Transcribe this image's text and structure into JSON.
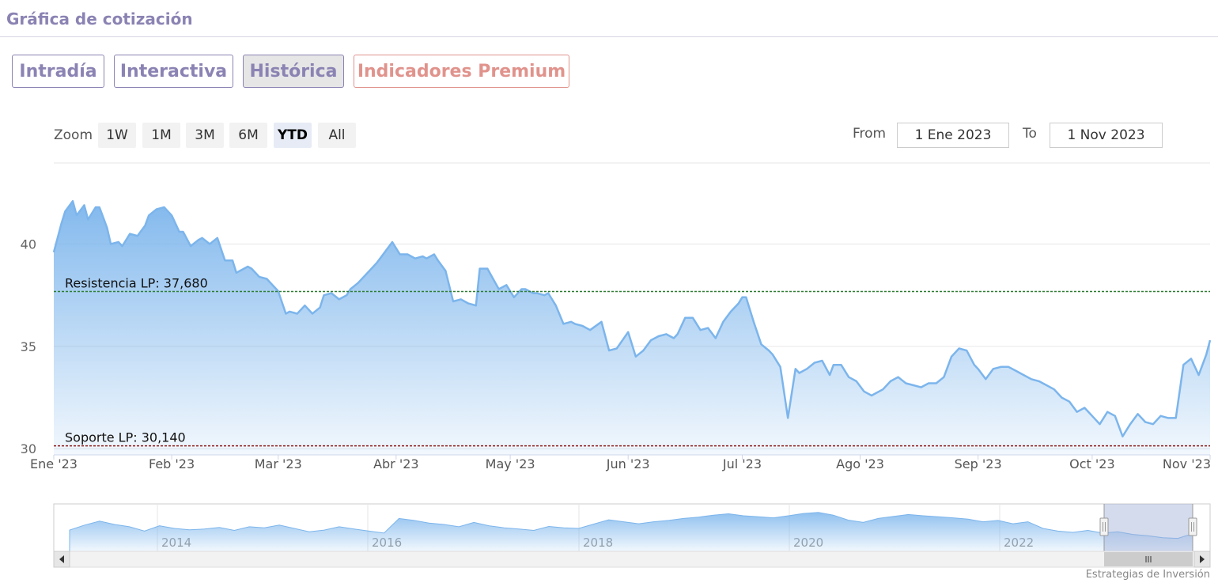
{
  "header": {
    "title": "Gráfica de cotización"
  },
  "tabs": [
    {
      "label": "Intradía",
      "active": false
    },
    {
      "label": "Interactiva",
      "active": false
    },
    {
      "label": "Histórica",
      "active": true
    },
    {
      "label": "Indicadores Premium",
      "active": false
    }
  ],
  "zoom": {
    "label": "Zoom",
    "buttons": [
      "1W",
      "1M",
      "3M",
      "6M",
      "YTD",
      "All"
    ],
    "selected": "YTD"
  },
  "range": {
    "from_label": "From",
    "from_value": "1 Ene 2023",
    "to_label": "To",
    "to_value": "1 Nov 2023"
  },
  "credit": "Estrategias de Inversión",
  "colors": {
    "line": "#7cb5ec",
    "resistance": "#2e7d32",
    "support": "#8b1a1a",
    "accent": "#8b83b3",
    "premium": "#e0938c"
  },
  "chart_data": {
    "type": "area",
    "ylim": [
      29.7,
      43.5
    ],
    "yticks": [
      30,
      35,
      40
    ],
    "xlim": [
      0,
      304
    ],
    "xticks": [
      {
        "x": 0,
        "label": "Ene '23"
      },
      {
        "x": 31,
        "label": "Feb '23"
      },
      {
        "x": 59,
        "label": "Mar '23"
      },
      {
        "x": 90,
        "label": "Abr '23"
      },
      {
        "x": 120,
        "label": "May '23"
      },
      {
        "x": 151,
        "label": "Jun '23"
      },
      {
        "x": 181,
        "label": "Jul '23"
      },
      {
        "x": 212,
        "label": "Ago '23"
      },
      {
        "x": 243,
        "label": "Sep '23"
      },
      {
        "x": 273,
        "label": "Oct '23"
      },
      {
        "x": 304,
        "label": "Nov '23"
      }
    ],
    "series": [
      {
        "x": [
          0,
          2,
          3,
          5,
          6,
          8,
          9,
          11,
          12,
          14,
          15,
          17,
          18,
          20,
          22,
          24,
          25,
          27,
          29,
          31,
          33,
          34,
          36,
          38,
          39,
          41,
          43,
          45,
          47,
          48,
          50,
          51,
          52,
          54,
          56,
          57,
          59,
          61,
          62,
          64,
          66,
          68,
          70,
          71,
          73,
          75,
          77,
          78,
          80,
          82,
          83,
          85,
          87,
          89,
          91,
          93,
          95,
          97,
          98,
          100,
          101,
          103,
          105,
          107,
          109,
          111,
          112,
          114,
          117,
          119,
          121,
          123,
          124,
          126,
          127,
          129,
          130,
          132,
          134,
          136,
          137,
          139,
          141,
          144,
          146,
          148,
          151,
          153,
          155,
          157,
          159,
          161,
          163,
          164,
          166,
          168,
          170,
          172,
          174,
          176,
          178,
          180,
          181,
          182,
          184,
          186,
          188,
          189,
          191,
          193,
          195,
          196,
          198,
          200,
          202,
          204,
          205,
          207,
          209,
          211,
          213,
          215,
          216,
          218,
          220,
          222,
          224,
          226,
          228,
          230,
          232,
          234,
          236,
          238,
          240,
          242,
          243,
          245,
          247,
          249,
          251,
          253,
          255,
          257,
          259,
          261,
          263,
          265,
          267,
          269,
          271,
          273,
          275,
          277,
          279,
          281,
          283,
          285,
          287,
          289,
          291,
          293,
          295,
          297,
          299,
          301,
          303,
          304
        ],
        "values": [
          39.6,
          41.0,
          41.6,
          42.1,
          41.4,
          41.9,
          41.2,
          41.8,
          41.8,
          40.8,
          40.0,
          40.1,
          39.9,
          40.5,
          40.4,
          40.9,
          41.4,
          41.7,
          41.8,
          41.4,
          40.6,
          40.6,
          39.9,
          40.2,
          40.3,
          40.0,
          40.3,
          39.2,
          39.2,
          38.6,
          38.8,
          38.9,
          38.8,
          38.4,
          38.3,
          38.1,
          37.7,
          36.6,
          36.7,
          36.6,
          37.0,
          36.6,
          36.9,
          37.5,
          37.6,
          37.3,
          37.5,
          37.8,
          38.1,
          38.5,
          38.7,
          39.1,
          39.6,
          40.1,
          39.5,
          39.5,
          39.3,
          39.4,
          39.3,
          39.5,
          39.2,
          38.7,
          37.2,
          37.3,
          37.1,
          37.0,
          38.8,
          38.8,
          37.8,
          38.0,
          37.4,
          37.8,
          37.8,
          37.6,
          37.6,
          37.5,
          37.6,
          37.0,
          36.1,
          36.2,
          36.1,
          36.0,
          35.8,
          36.2,
          34.8,
          34.9,
          35.7,
          34.5,
          34.8,
          35.3,
          35.5,
          35.6,
          35.4,
          35.6,
          36.4,
          36.4,
          35.8,
          35.9,
          35.4,
          36.2,
          36.7,
          37.1,
          37.4,
          37.4,
          36.2,
          35.1,
          34.8,
          34.6,
          34.0,
          31.5,
          33.9,
          33.7,
          33.9,
          34.2,
          34.3,
          33.6,
          34.1,
          34.1,
          33.5,
          33.3,
          32.8,
          32.6,
          32.7,
          32.9,
          33.3,
          33.5,
          33.2,
          33.1,
          33.0,
          33.2,
          33.2,
          33.5,
          34.5,
          34.9,
          34.8,
          34.1,
          33.9,
          33.4,
          33.9,
          34.0,
          34.0,
          33.8,
          33.6,
          33.4,
          33.3,
          33.1,
          32.9,
          32.5,
          32.3,
          31.8,
          32.0,
          31.6,
          31.2,
          31.8,
          31.6,
          30.6,
          31.2,
          31.7,
          31.3,
          31.2,
          31.6,
          31.5,
          31.5,
          34.1,
          34.4,
          33.6,
          34.6,
          35.3
        ]
      }
    ],
    "lines": [
      {
        "label": "Resistencia LP: 37,680",
        "value": 37.68
      },
      {
        "label": "Soporte LP: 30,140",
        "value": 30.14
      }
    ],
    "navigator": {
      "labels": [
        "2014",
        "2016",
        "2018",
        "2020",
        "2022"
      ],
      "values": [
        0.45,
        0.6,
        0.72,
        0.62,
        0.55,
        0.42,
        0.58,
        0.5,
        0.46,
        0.48,
        0.53,
        0.44,
        0.55,
        0.52,
        0.6,
        0.5,
        0.4,
        0.45,
        0.55,
        0.48,
        0.42,
        0.36,
        0.8,
        0.74,
        0.66,
        0.62,
        0.55,
        0.68,
        0.58,
        0.52,
        0.48,
        0.44,
        0.56,
        0.52,
        0.5,
        0.63,
        0.76,
        0.7,
        0.64,
        0.7,
        0.74,
        0.8,
        0.84,
        0.9,
        0.94,
        0.88,
        0.85,
        0.82,
        0.88,
        0.95,
        0.98,
        0.9,
        0.75,
        0.68,
        0.8,
        0.86,
        0.92,
        0.88,
        0.85,
        0.82,
        0.78,
        0.7,
        0.74,
        0.64,
        0.7,
        0.5,
        0.42,
        0.38,
        0.44,
        0.36,
        0.4,
        0.32,
        0.28,
        0.22,
        0.2,
        0.34
      ]
    }
  }
}
